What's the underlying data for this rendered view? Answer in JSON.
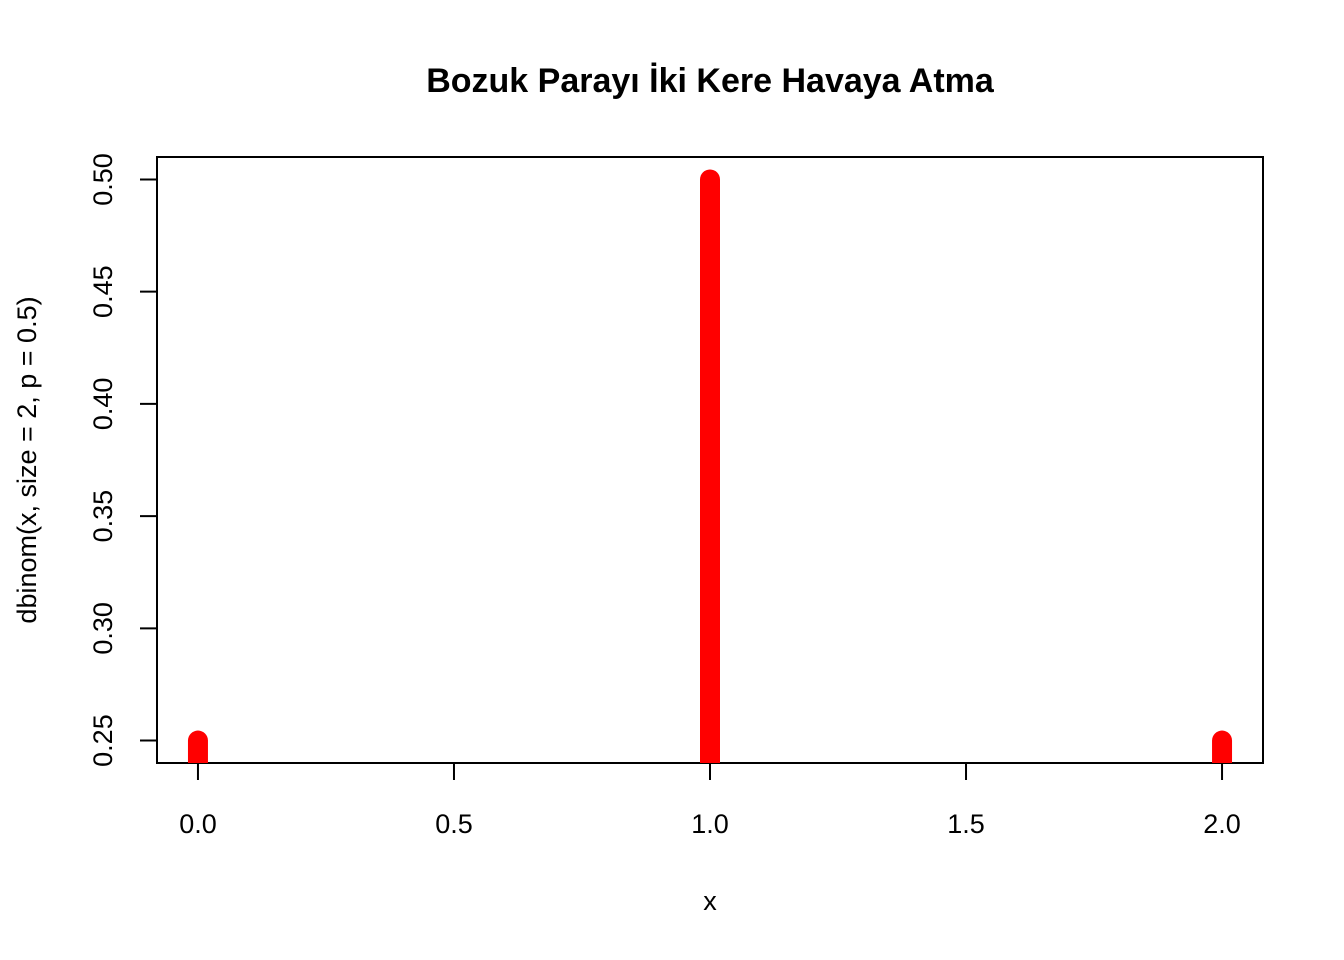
{
  "chart_data": {
    "type": "bar",
    "title": "Bozuk Parayı İki Kere Havaya Atma",
    "xlabel": "x",
    "ylabel": "dbinom(x, size = 2, p = 0.5)",
    "x": [
      0,
      1,
      2
    ],
    "values": [
      0.25,
      0.5,
      0.25
    ],
    "xlim": [
      -0.08,
      2.08
    ],
    "ylim": [
      0.24,
      0.51
    ],
    "xticks": [
      "0.0",
      "0.5",
      "1.0",
      "1.5",
      "2.0"
    ],
    "yticks": [
      "0.25",
      "0.30",
      "0.35",
      "0.40",
      "0.45",
      "0.50"
    ],
    "series": [
      {
        "color": "#ff0000"
      }
    ],
    "grid": false,
    "legend": "none",
    "plot_type": "h (histogram-like vertical lines)"
  }
}
